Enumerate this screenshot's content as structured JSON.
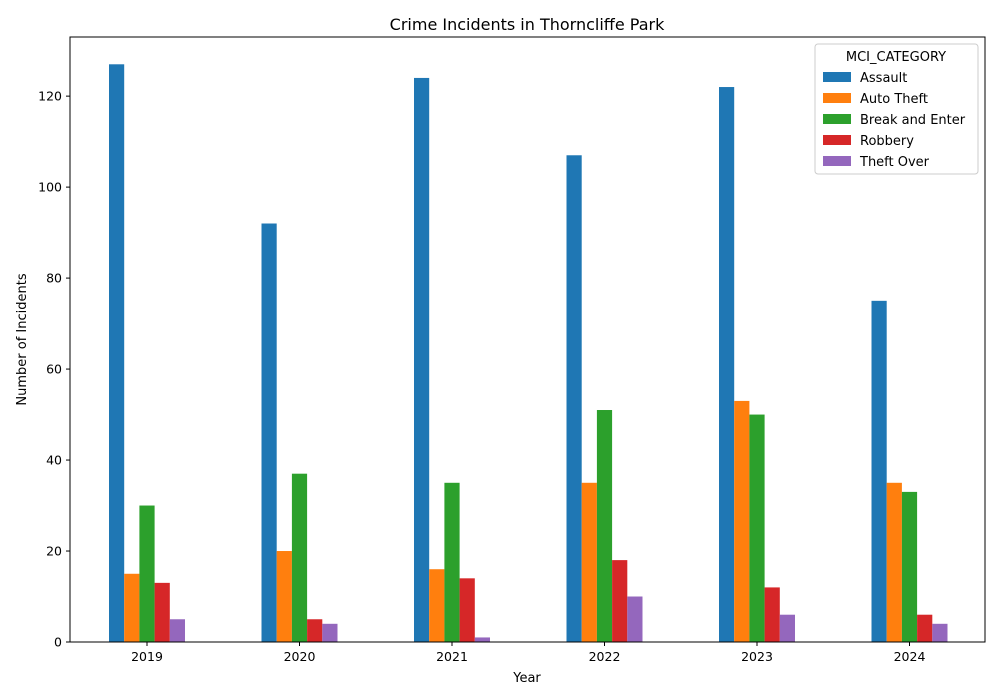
{
  "chart_data": {
    "type": "bar",
    "title": "Crime Incidents in Thorncliffe Park",
    "xlabel": "Year",
    "ylabel": "Number of Incidents",
    "categories": [
      "2019",
      "2020",
      "2021",
      "2022",
      "2023",
      "2024"
    ],
    "ylim": [
      0,
      133
    ],
    "yticks": [
      0,
      20,
      40,
      60,
      80,
      100,
      120
    ],
    "grid": false,
    "legend": {
      "title": "MCI_CATEGORY",
      "placement": "top-right"
    },
    "series": [
      {
        "name": "Assault",
        "color": "#1f77b4",
        "values": [
          127,
          92,
          124,
          107,
          122,
          75
        ]
      },
      {
        "name": "Auto Theft",
        "color": "#ff7f0e",
        "values": [
          15,
          20,
          16,
          35,
          53,
          35
        ]
      },
      {
        "name": "Break and Enter",
        "color": "#2ca02c",
        "values": [
          30,
          37,
          35,
          51,
          50,
          33
        ]
      },
      {
        "name": "Robbery",
        "color": "#d62728",
        "values": [
          13,
          5,
          14,
          18,
          12,
          6
        ]
      },
      {
        "name": "Theft Over",
        "color": "#9467bd",
        "values": [
          5,
          4,
          1,
          10,
          6,
          4
        ]
      }
    ]
  }
}
